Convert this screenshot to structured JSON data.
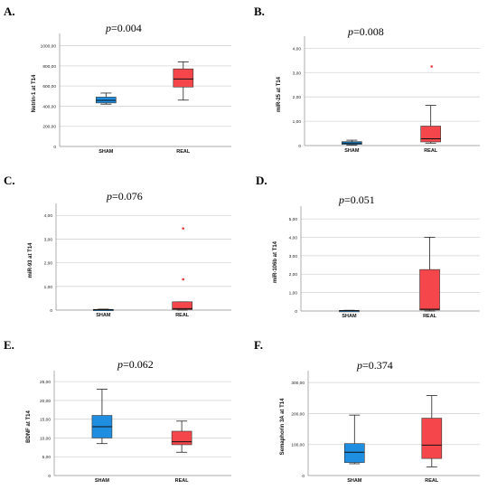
{
  "colors": {
    "sham": "#1f8de0",
    "real": "#f5474b",
    "grid": "#d4d4d4",
    "outlier": "#e83a3a"
  },
  "chart_data": [
    {
      "type": "box",
      "panel": "A.",
      "p_prefix": "p",
      "p_value": "=0.004",
      "ylabel": "Netrin-1 at T14",
      "yticks": [
        0,
        200,
        400,
        600,
        800,
        1000
      ],
      "yticklabels": [
        "0",
        "200,00",
        "400,00",
        "600,00",
        "800,00",
        "1000,00"
      ],
      "ylim": [
        0,
        1050
      ],
      "categories": [
        "SHAM",
        "REAL"
      ],
      "boxes": [
        {
          "name": "SHAM",
          "min": 420,
          "q1": 432,
          "median": 458,
          "q3": 490,
          "max": 530,
          "outliers": []
        },
        {
          "name": "REAL",
          "min": 460,
          "q1": 590,
          "median": 670,
          "q3": 770,
          "max": 840,
          "outliers": []
        }
      ]
    },
    {
      "type": "box",
      "panel": "B.",
      "p_prefix": "p",
      "p_value": "=0.008",
      "ylabel": "miR-25 at T14",
      "yticks": [
        0,
        1,
        2,
        3,
        4
      ],
      "yticklabels": [
        "0",
        "1,00",
        "2,00",
        "3,00",
        "4,00"
      ],
      "ylim": [
        0,
        4.2
      ],
      "categories": [
        "SHAM",
        "REAL"
      ],
      "boxes": [
        {
          "name": "SHAM",
          "min": 0.02,
          "q1": 0.05,
          "median": 0.1,
          "q3": 0.16,
          "max": 0.22,
          "outliers": []
        },
        {
          "name": "REAL",
          "min": 0.1,
          "q1": 0.15,
          "median": 0.28,
          "q3": 0.8,
          "max": 1.65,
          "outliers": [
            3.25
          ]
        }
      ]
    },
    {
      "type": "box",
      "panel": "C.",
      "p_prefix": "p",
      "p_value": "=0.076",
      "ylabel": "miR-93 at T14",
      "yticks": [
        0,
        1,
        2,
        3,
        4
      ],
      "yticklabels": [
        "0",
        "1,00",
        "2,00",
        "3,00",
        "4,00"
      ],
      "ylim": [
        0,
        4.2
      ],
      "categories": [
        "SHAM",
        "REAL"
      ],
      "boxes": [
        {
          "name": "SHAM",
          "min": 0.0,
          "q1": 0.01,
          "median": 0.02,
          "q3": 0.03,
          "max": 0.04,
          "outliers": []
        },
        {
          "name": "REAL",
          "min": 0.0,
          "q1": 0.02,
          "median": 0.06,
          "q3": 0.35,
          "max": 0.35,
          "outliers": [
            1.3,
            3.45
          ]
        }
      ]
    },
    {
      "type": "box",
      "panel": "D.",
      "p_prefix": "p",
      "p_value": "=0.051",
      "ylabel": "miR-106b at T14",
      "yticks": [
        0,
        1,
        2,
        3,
        4,
        5
      ],
      "yticklabels": [
        "0",
        "1,00",
        "2,00",
        "3,00",
        "4,00",
        "5,00"
      ],
      "ylim": [
        0,
        5.3
      ],
      "categories": [
        "SHAM",
        "REAL"
      ],
      "boxes": [
        {
          "name": "SHAM",
          "min": 0.0,
          "q1": 0.01,
          "median": 0.02,
          "q3": 0.03,
          "max": 0.04,
          "outliers": []
        },
        {
          "name": "REAL",
          "min": 0.0,
          "q1": 0.05,
          "median": 0.1,
          "q3": 2.25,
          "max": 4.0,
          "outliers": []
        }
      ]
    },
    {
      "type": "box",
      "panel": "E.",
      "p_prefix": "p",
      "p_value": "=0.062",
      "ylabel": "BDNF at T14",
      "yticks": [
        0,
        5,
        10,
        15,
        20,
        25
      ],
      "yticklabels": [
        "0",
        "5,00",
        "10,00",
        "15,00",
        "20,00",
        "25,00"
      ],
      "ylim": [
        0,
        26
      ],
      "categories": [
        "SHAM",
        "REAL"
      ],
      "boxes": [
        {
          "name": "SHAM",
          "min": 8.5,
          "q1": 10.0,
          "median": 13.0,
          "q3": 16.0,
          "max": 23.0,
          "outliers": []
        },
        {
          "name": "REAL",
          "min": 6.2,
          "q1": 8.2,
          "median": 9.0,
          "q3": 11.8,
          "max": 14.5,
          "outliers": []
        }
      ]
    },
    {
      "type": "box",
      "panel": "F.",
      "p_prefix": "p",
      "p_value": "=0.374",
      "ylabel": "Semaphorin 3A at T14",
      "yticks": [
        0,
        100,
        200,
        300
      ],
      "yticklabels": [
        "0",
        "100,00",
        "200,00",
        "300,00"
      ],
      "ylim": [
        0,
        315
      ],
      "categories": [
        "SHAM",
        "REAL"
      ],
      "boxes": [
        {
          "name": "SHAM",
          "min": 38,
          "q1": 42,
          "median": 75,
          "q3": 103,
          "max": 195,
          "outliers": []
        },
        {
          "name": "REAL",
          "min": 28,
          "q1": 55,
          "median": 98,
          "q3": 185,
          "max": 258,
          "outliers": []
        }
      ]
    }
  ]
}
